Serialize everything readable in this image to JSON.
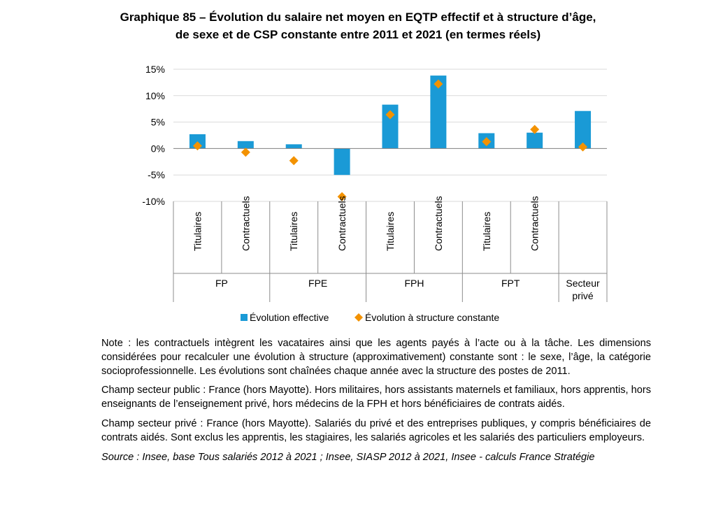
{
  "title_line1": "Graphique 85 – Évolution du salaire net moyen en EQTP effectif et à structure d’âge,",
  "title_line2": "de sexe et de CSP constante entre 2011 et 2021 (en termes réels)",
  "chart_data": {
    "type": "bar",
    "categories": [
      "Titulaires",
      "Contractuels",
      "Titulaires",
      "Contractuels",
      "Titulaires",
      "Contractuels",
      "Titulaires",
      "Contractuels",
      ""
    ],
    "groups": [
      {
        "label": "FP",
        "count": 2
      },
      {
        "label": "FPE",
        "count": 2
      },
      {
        "label": "FPH",
        "count": 2
      },
      {
        "label": "FPT",
        "count": 2
      },
      {
        "label": "Secteur privé",
        "lines": [
          "Secteur",
          "privé"
        ],
        "count": 1
      }
    ],
    "series": [
      {
        "name": "Évolution effective",
        "kind": "bar",
        "color": "#1a9ad6",
        "values": [
          2.7,
          1.4,
          0.8,
          -5.0,
          8.3,
          13.8,
          2.9,
          3.0,
          7.1
        ]
      },
      {
        "name": "Évolution à structure constante",
        "kind": "marker",
        "color": "#f39200",
        "values": [
          0.5,
          -0.7,
          -2.3,
          -9.1,
          6.4,
          12.2,
          1.3,
          3.6,
          0.3
        ]
      }
    ],
    "ylim": [
      -10,
      15
    ],
    "yticks": [
      15,
      10,
      5,
      0,
      -5,
      -10
    ],
    "ytick_labels": [
      "15%",
      "10%",
      "5%",
      "0%",
      "-5%",
      "-10%"
    ],
    "grid": true,
    "legend_position": "bottom"
  },
  "notes": {
    "note": "Note : les contractuels intègrent les vacataires ainsi que les agents payés à l’acte ou à la tâche. Les dimensions considérées pour recalculer une évolution à structure (approximativement) constante sont : le sexe, l’âge, la catégorie socioprofessionnelle. Les évolutions sont chaînées chaque année avec la structure des postes de 2011.",
    "champ_public": "Champ secteur public : France (hors Mayotte). Hors militaires, hors assistants maternels et familiaux, hors apprentis, hors enseignants de l’enseignement privé, hors médecins de la FPH et hors bénéficiaires de contrats aidés.",
    "champ_prive": "Champ secteur privé : France (hors Mayotte). Salariés du privé et des entreprises publiques, y compris bénéficiaires de contrats aidés. Sont exclus les apprentis, les stagiaires, les salariés agricoles et les salariés des particuliers employeurs.",
    "source": "Source : Insee, base Tous salariés 2012 à 2021 ; Insee, SIASP 2012 à 2021, Insee - calculs France Stratégie"
  }
}
